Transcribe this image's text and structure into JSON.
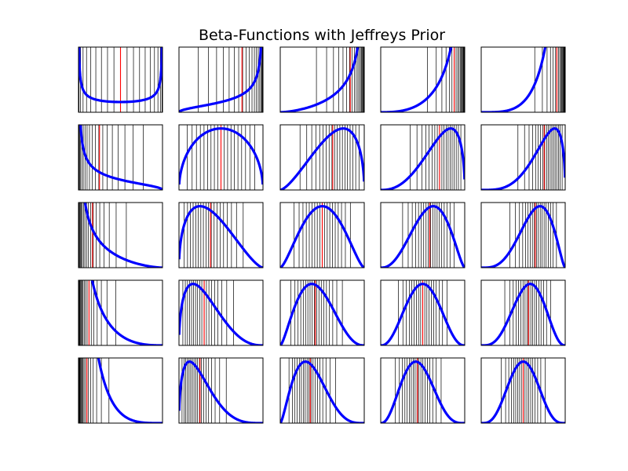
{
  "chart_data": {
    "type": "line",
    "title": "Beta-Functions with Jeffreys Prior",
    "xlim": [
      0,
      1
    ],
    "grid_rows": 5,
    "grid_cols": 5,
    "prior": [
      0.5,
      0.5
    ],
    "row_beta_counts": [
      0,
      1,
      2,
      3,
      4
    ],
    "col_alpha_counts": [
      0,
      1,
      2,
      3,
      4
    ],
    "reference_lines": "black vertical lines at posterior quantiles, red vertical line at posterior mean",
    "colors": {
      "curve": "#0000ff",
      "quantile_line": "#000000",
      "mean_line": "#ff0000",
      "frame": "#000000",
      "background": "#ffffff"
    },
    "series_note": "Each panel shows Beta(alpha, beta) density with alpha = 0.5 + column count and beta = 0.5 + row count"
  }
}
